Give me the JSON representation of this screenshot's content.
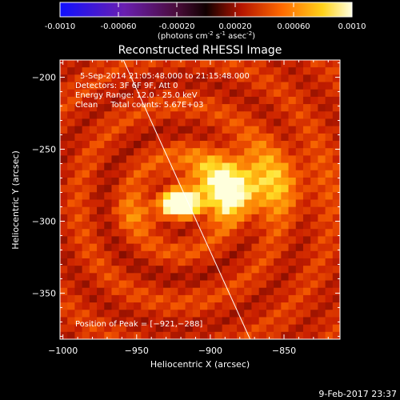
{
  "colorbar": {
    "ticks": [
      "-0.0010",
      "-0.00060",
      "-0.00020",
      "0.00020",
      "0.00060",
      "0.0010"
    ],
    "tick_values": [
      -0.001,
      -0.0006,
      -0.0002,
      0.0002,
      0.0006,
      0.001
    ],
    "range": [
      -0.001,
      0.001
    ],
    "label_main": "(photons cm",
    "label_exp1": "-2",
    "label_mid": " s",
    "label_exp2": "-1",
    "label_tail": " asec",
    "label_exp3": "-2",
    "label_end": ")"
  },
  "chart_data": {
    "type": "heatmap",
    "title": "Reconstructed RHESSI Image",
    "xlabel": "Heliocentric X (arcsec)",
    "ylabel": "Heliocentric Y (arcsec)",
    "xlim": [
      -1002,
      -812
    ],
    "ylim": [
      -382,
      -188
    ],
    "xticks": [
      -1000,
      -950,
      -900,
      -850
    ],
    "yticks": [
      -200,
      -250,
      -300,
      -350
    ],
    "xtick_labels": [
      "−1000",
      "−950",
      "−900",
      "−850"
    ],
    "ytick_labels": [
      "−200",
      "−250",
      "−300",
      "−350"
    ],
    "info_lines": [
      "5-Sep-2014 21:05:48.000 to 21:15:48.000",
      "Detectors: 3F 6F 9F, Att 0",
      "Energy Range: 12.0 - 25.0 keV",
      "Clean     Total counts: 5.67E+03"
    ],
    "peak_label": "Position of Peak = [−921,−288]",
    "peak": [
      -921,
      -288
    ],
    "sources": [
      {
        "x": -921,
        "y": -288,
        "sigma": 9,
        "amplitude": 1.0
      },
      {
        "x": -875,
        "y": -272,
        "sigma": 28,
        "amplitude": 0.55
      },
      {
        "x": -895,
        "y": -280,
        "sigma": 20,
        "amplitude": 0.45
      },
      {
        "x": -945,
        "y": -295,
        "sigma": 14,
        "amplitude": 0.25
      }
    ],
    "limb_line": [
      [
        -959,
        -188
      ],
      [
        -873,
        -382
      ]
    ],
    "colormap": "red-temperature",
    "grid": false
  },
  "footer": {
    "date": "9-Feb-2017 23:37"
  }
}
